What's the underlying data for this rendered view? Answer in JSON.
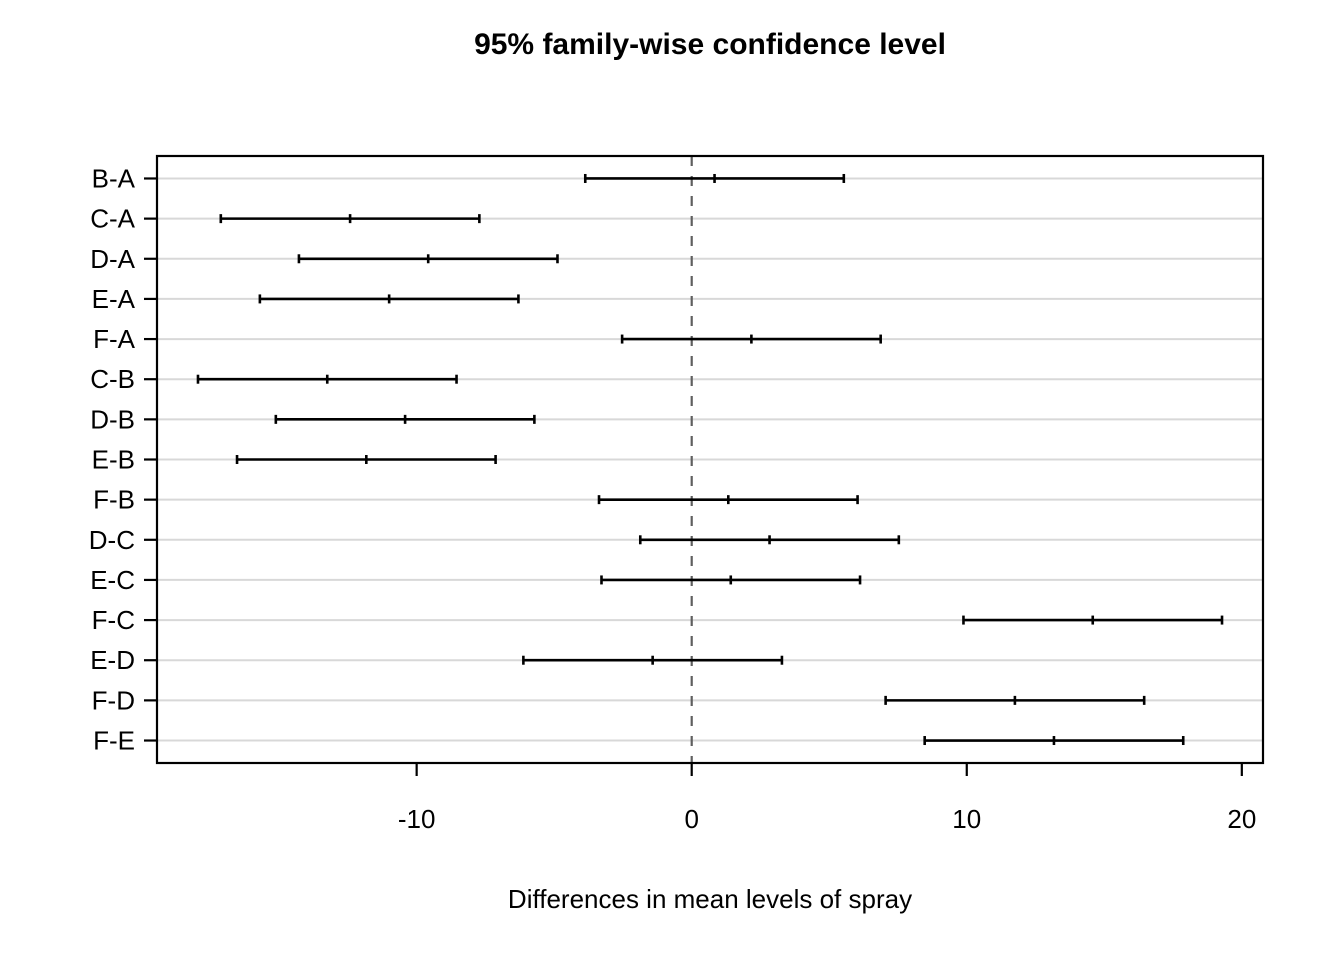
{
  "chart_data": {
    "type": "errorbar",
    "title": "95% family-wise confidence level",
    "xlabel": "Differences in mean levels of spray",
    "ylabel": "",
    "categories": [
      "B-A",
      "C-A",
      "D-A",
      "E-A",
      "F-A",
      "C-B",
      "D-B",
      "E-B",
      "F-B",
      "D-C",
      "E-C",
      "F-C",
      "E-D",
      "F-D",
      "F-E"
    ],
    "intervals": [
      {
        "label": "B-A",
        "lower": -3.87,
        "center": 0.83,
        "upper": 5.53
      },
      {
        "label": "C-A",
        "lower": -17.12,
        "center": -12.42,
        "upper": -7.72
      },
      {
        "label": "D-A",
        "lower": -14.28,
        "center": -9.58,
        "upper": -4.88
      },
      {
        "label": "E-A",
        "lower": -15.7,
        "center": -11.0,
        "upper": -6.3
      },
      {
        "label": "F-A",
        "lower": -2.53,
        "center": 2.17,
        "upper": 6.87
      },
      {
        "label": "C-B",
        "lower": -17.95,
        "center": -13.25,
        "upper": -8.55
      },
      {
        "label": "D-B",
        "lower": -15.12,
        "center": -10.42,
        "upper": -5.72
      },
      {
        "label": "E-B",
        "lower": -16.53,
        "center": -11.83,
        "upper": -7.13
      },
      {
        "label": "F-B",
        "lower": -3.37,
        "center": 1.33,
        "upper": 6.03
      },
      {
        "label": "D-C",
        "lower": -1.87,
        "center": 2.83,
        "upper": 7.53
      },
      {
        "label": "E-C",
        "lower": -3.28,
        "center": 1.42,
        "upper": 6.12
      },
      {
        "label": "F-C",
        "lower": 9.88,
        "center": 14.58,
        "upper": 19.28
      },
      {
        "label": "E-D",
        "lower": -6.12,
        "center": -1.42,
        "upper": 3.28
      },
      {
        "label": "F-D",
        "lower": 7.05,
        "center": 11.75,
        "upper": 16.45
      },
      {
        "label": "F-E",
        "lower": 8.47,
        "center": 13.17,
        "upper": 17.87
      }
    ],
    "x_ticks": [
      "-10",
      "0",
      "10",
      "20"
    ],
    "x_tick_values": [
      -10,
      0,
      10,
      20
    ],
    "xlim": [
      -19.44,
      20.77
    ],
    "ylim": [
      0.44,
      15.56
    ],
    "reference_line_x": 0,
    "grid": "horizontal-lines-per-row",
    "legend": "none",
    "colors": {
      "interval": "#000000",
      "grid_line": "#d8d8d8",
      "zero_line": "#5f5f5f",
      "box": "#000000",
      "background": "#ffffff",
      "text": "#000000"
    }
  }
}
